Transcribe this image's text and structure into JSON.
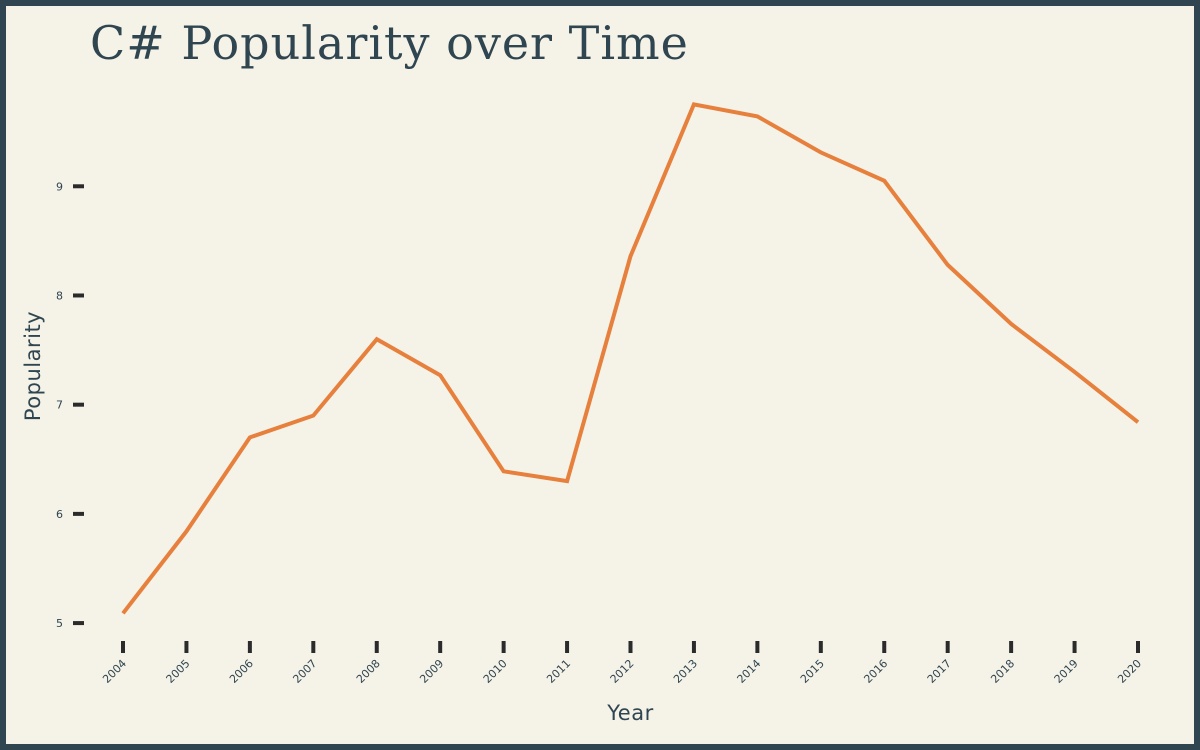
{
  "chart_data": {
    "type": "line",
    "title": "C# Popularity over Time",
    "xlabel": "Year",
    "ylabel": "Popularity",
    "ylim": [
      4.9,
      9.9
    ],
    "yticks": [
      5,
      6,
      7,
      8,
      9
    ],
    "grid": false,
    "x": [
      "2004",
      "2005",
      "2006",
      "2007",
      "2008",
      "2009",
      "2010",
      "2011",
      "2012",
      "2013",
      "2014",
      "2015",
      "2016",
      "2017",
      "2018",
      "2019",
      "2020"
    ],
    "series": [
      {
        "values": [
          5.09,
          5.84,
          6.7,
          6.9,
          7.6,
          7.27,
          6.39,
          6.3,
          8.36,
          9.75,
          9.64,
          9.31,
          9.05,
          8.28,
          7.74,
          7.3,
          6.84
        ],
        "color": "#e6803c"
      }
    ]
  }
}
